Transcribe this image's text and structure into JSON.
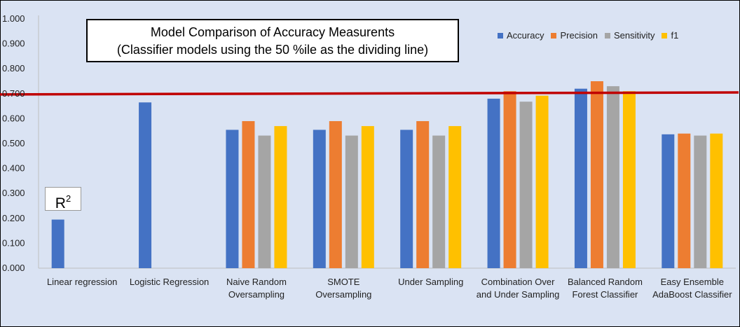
{
  "chart_data": {
    "type": "bar",
    "title": "Model Comparison of Accuracy Measurents",
    "subtitle": "(Classifier models using the 50 %ile as the dividing line)",
    "annotation": {
      "base": "R",
      "sup": "2"
    },
    "categories": [
      [
        "Linear regression"
      ],
      [
        "Logistic Regression"
      ],
      [
        "Naive Random",
        "Oversampling"
      ],
      [
        "SMOTE",
        "Oversampling"
      ],
      [
        "Under Sampling"
      ],
      [
        "Combination Over",
        "and Under Sampling"
      ],
      [
        "Balanced Random",
        "Forest Classifier"
      ],
      [
        "Easy Ensemble",
        "AdaBoost Classifier"
      ]
    ],
    "series": [
      {
        "name": "Accuracy",
        "color": "#4472c4",
        "values": [
          0.195,
          0.665,
          0.555,
          0.555,
          0.555,
          0.68,
          0.72,
          0.537
        ]
      },
      {
        "name": "Precision",
        "color": "#ed7d31",
        "values": [
          null,
          null,
          0.59,
          0.59,
          0.59,
          0.71,
          0.75,
          0.54
        ]
      },
      {
        "name": "Sensitivity",
        "color": "#a5a5a5",
        "values": [
          null,
          null,
          0.532,
          0.532,
          0.532,
          0.668,
          0.73,
          0.532
        ]
      },
      {
        "name": "f1",
        "color": "#ffc000",
        "values": [
          null,
          null,
          0.57,
          0.57,
          0.57,
          0.692,
          0.71,
          0.54
        ]
      }
    ],
    "yticks": [
      "0.000",
      "0.100",
      "0.200",
      "0.300",
      "0.400",
      "0.500",
      "0.600",
      "0.700",
      "0.800",
      "0.900",
      "1.000"
    ],
    "ylim": [
      0,
      1
    ],
    "reference_line": {
      "start": 0.697,
      "end": 0.705,
      "color": "#c00000"
    },
    "grid": true,
    "legend_position": "top-right"
  }
}
